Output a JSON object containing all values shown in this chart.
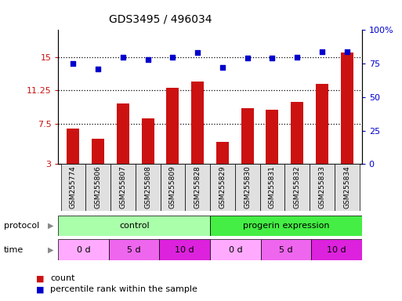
{
  "title": "GDS3495 / 496034",
  "samples": [
    "GSM255774",
    "GSM255806",
    "GSM255807",
    "GSM255808",
    "GSM255809",
    "GSM255828",
    "GSM255829",
    "GSM255830",
    "GSM255831",
    "GSM255832",
    "GSM255833",
    "GSM255834"
  ],
  "bar_values": [
    7.0,
    5.8,
    9.8,
    8.1,
    11.5,
    12.2,
    5.5,
    9.3,
    9.1,
    10.0,
    12.0,
    15.5
  ],
  "dot_values": [
    75,
    71,
    80,
    78,
    80,
    83,
    72,
    79,
    79,
    80,
    84,
    84
  ],
  "bar_color": "#cc1111",
  "dot_color": "#0000cc",
  "ylim_left": [
    3,
    18
  ],
  "ylim_right": [
    0,
    100
  ],
  "yticks_left": [
    3,
    7.5,
    11.25,
    15
  ],
  "yticks_left_labels": [
    "3",
    "7.5",
    "11.25",
    "15"
  ],
  "yticks_right": [
    0,
    25,
    50,
    75,
    100
  ],
  "yticks_right_labels": [
    "0",
    "25",
    "50",
    "75",
    "100%"
  ],
  "hlines": [
    7.5,
    11.25,
    15
  ],
  "protocol_labels": [
    "control",
    "progerin expression"
  ],
  "protocol_colors": [
    "#aaffaa",
    "#44ee44"
  ],
  "time_labels": [
    "0 d",
    "5 d",
    "10 d",
    "0 d",
    "5 d",
    "10 d"
  ],
  "time_colors": [
    "#ffaaff",
    "#ee66ee",
    "#dd22dd",
    "#ffaaff",
    "#ee66ee",
    "#dd22dd"
  ],
  "bg_color": "#ffffff",
  "tick_label_color_left": "#cc1111",
  "tick_label_color_right": "#0000cc",
  "legend_count": "count",
  "legend_pct": "percentile rank within the sample"
}
